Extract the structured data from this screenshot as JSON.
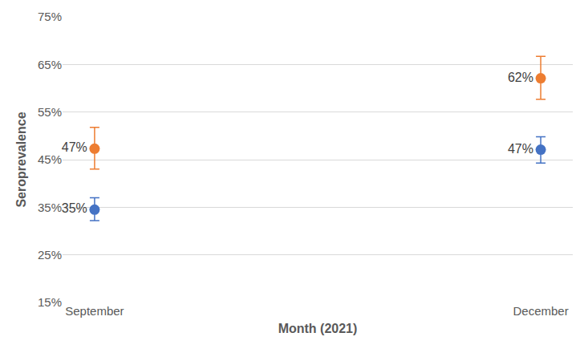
{
  "chart_data": {
    "type": "scatter",
    "x_label": "Month (2021)",
    "y_label": "Seroprevalence",
    "categories": [
      "September",
      "December"
    ],
    "series": [
      {
        "color": "#ED7D31",
        "marker": "circle",
        "values": [
          47.3,
          62.1
        ],
        "value_labels": [
          "47%",
          "62%"
        ],
        "lower": [
          43.0,
          57.7
        ],
        "upper": [
          51.8,
          66.7
        ]
      },
      {
        "color": "#4472C4",
        "marker": "circle",
        "values": [
          34.5,
          47.1
        ],
        "value_labels": [
          "35%",
          "47%"
        ],
        "lower": [
          32.2,
          44.3
        ],
        "upper": [
          37.0,
          49.8
        ]
      }
    ],
    "ylim": [
      15,
      75
    ],
    "yticks": [
      {
        "value": 15,
        "label": "15%"
      },
      {
        "value": 25,
        "label": "25%"
      },
      {
        "value": 35,
        "label": "35%"
      },
      {
        "value": 45,
        "label": "45%"
      },
      {
        "value": 55,
        "label": "55%"
      },
      {
        "value": 65,
        "label": "65%"
      },
      {
        "value": 75,
        "label": "75%"
      }
    ],
    "grid": true,
    "data_labels": true
  }
}
